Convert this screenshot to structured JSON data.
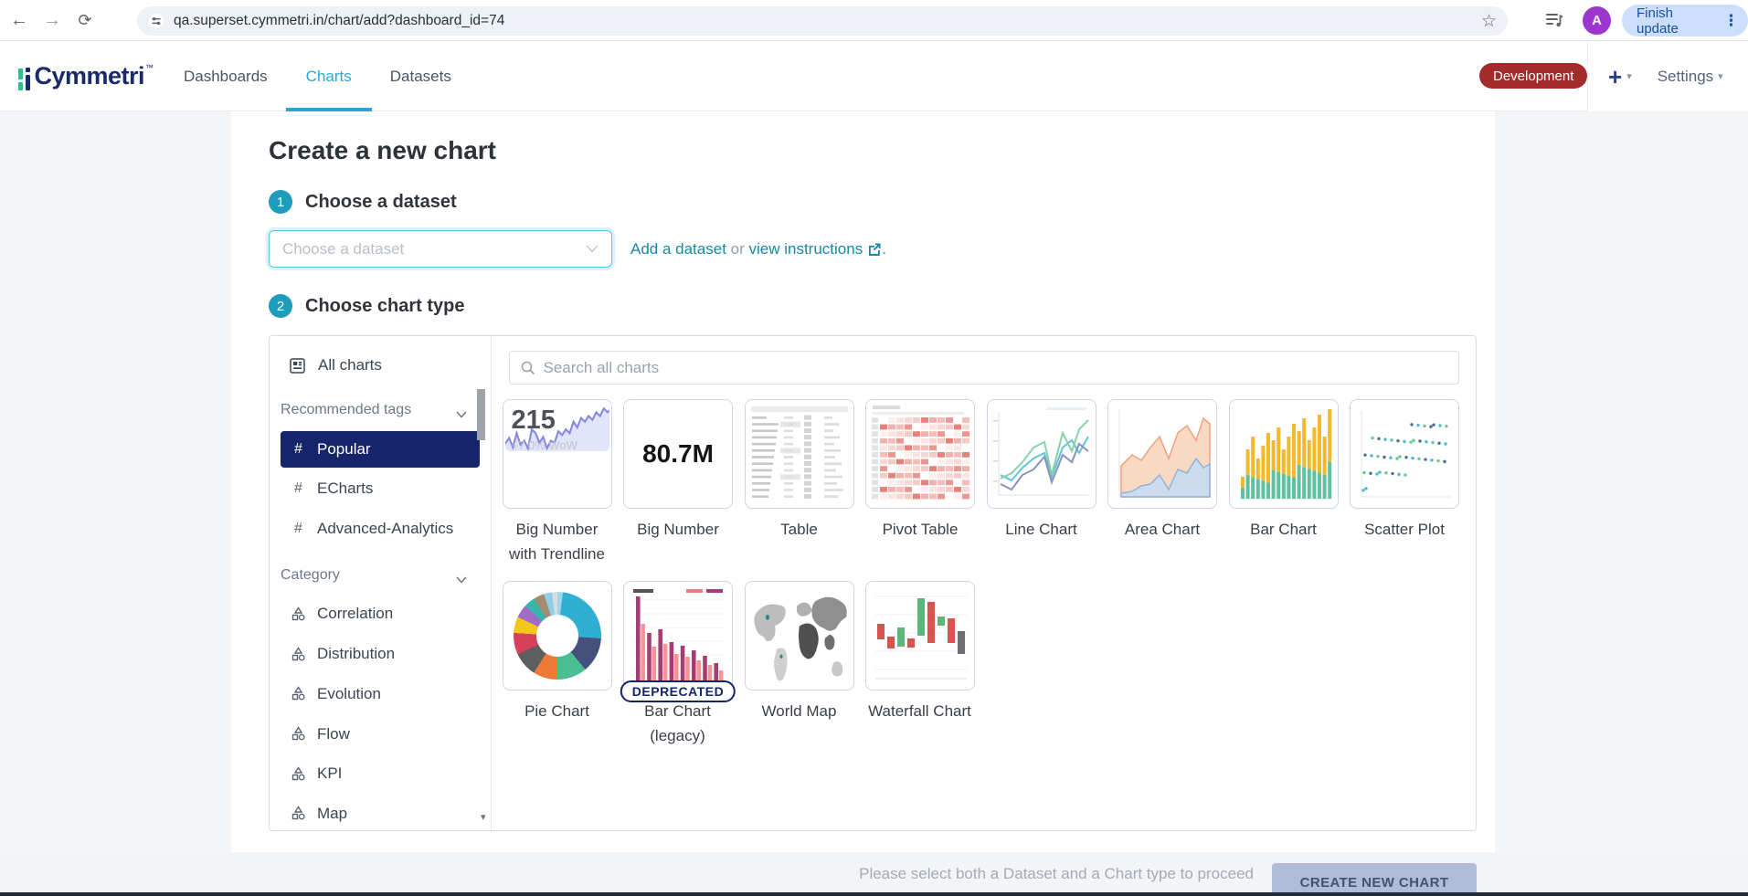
{
  "browser": {
    "url": "qa.superset.cymmetri.in/chart/add?dashboard_id=74",
    "finish_update_label": "Finish update",
    "avatar_letter": "A"
  },
  "icons": {
    "back": "←",
    "forward": "→",
    "reload": "⟳",
    "star": "☆",
    "more_vert": "⋮",
    "caret_down": "▾",
    "scroll_down": "▾",
    "hash": "#"
  },
  "header": {
    "logo_text": "Cymmetri",
    "logo_tm": "™",
    "nav": [
      {
        "label": "Dashboards"
      },
      {
        "label": "Charts"
      },
      {
        "label": "Datasets"
      }
    ],
    "environment_badge": "Development",
    "plus_label": "+",
    "settings_label": "Settings"
  },
  "page": {
    "title": "Create a new chart",
    "step1": {
      "number": "1",
      "label": "Choose a dataset",
      "dropdown_placeholder": "Choose a dataset",
      "add_link": "Add a dataset",
      "or_text": " or ",
      "view_link": "view instructions",
      "period": "."
    },
    "step2": {
      "number": "2",
      "label": "Choose chart type"
    },
    "sidebar": {
      "all_charts": "All charts",
      "groups": [
        {
          "label": "Recommended tags",
          "items": [
            {
              "label": "Popular",
              "selected": true
            },
            {
              "label": "ECharts",
              "selected": false
            },
            {
              "label": "Advanced-Analytics",
              "selected": false
            }
          ]
        },
        {
          "label": "Category",
          "items": [
            {
              "label": "Correlation",
              "selected": false
            },
            {
              "label": "Distribution",
              "selected": false
            },
            {
              "label": "Evolution",
              "selected": false
            },
            {
              "label": "Flow",
              "selected": false
            },
            {
              "label": "KPI",
              "selected": false
            },
            {
              "label": "Map",
              "selected": false
            }
          ]
        }
      ]
    },
    "gallery": {
      "search_placeholder": "Search all charts",
      "cards": [
        {
          "label": "Big Number with Trendline",
          "value": "215",
          "delta": "+7.0% WoW"
        },
        {
          "label": "Big Number",
          "value": "80.7M"
        },
        {
          "label": "Table"
        },
        {
          "label": "Pivot Table"
        },
        {
          "label": "Line Chart"
        },
        {
          "label": "Area Chart"
        },
        {
          "label": "Bar Chart"
        },
        {
          "label": "Scatter Plot"
        },
        {
          "label": "Pie Chart"
        },
        {
          "label": "Bar Chart (legacy)",
          "badge": "DEPRECATED"
        },
        {
          "label": "World Map"
        },
        {
          "label": "Waterfall Chart"
        }
      ]
    },
    "footer": {
      "hint": "Please select both a Dataset and a Chart type to proceed",
      "button": "CREATE NEW CHART"
    }
  },
  "colors": {
    "accent_teal": "#1e9cbb",
    "link_teal": "#1a87a3",
    "active_tab": "#2aa8d4",
    "brand_navy": "#16256b",
    "environment_badge_red": "#a42b2b",
    "disabled_button": "#afbcd9",
    "avatar_purple": "#9c36cf"
  }
}
